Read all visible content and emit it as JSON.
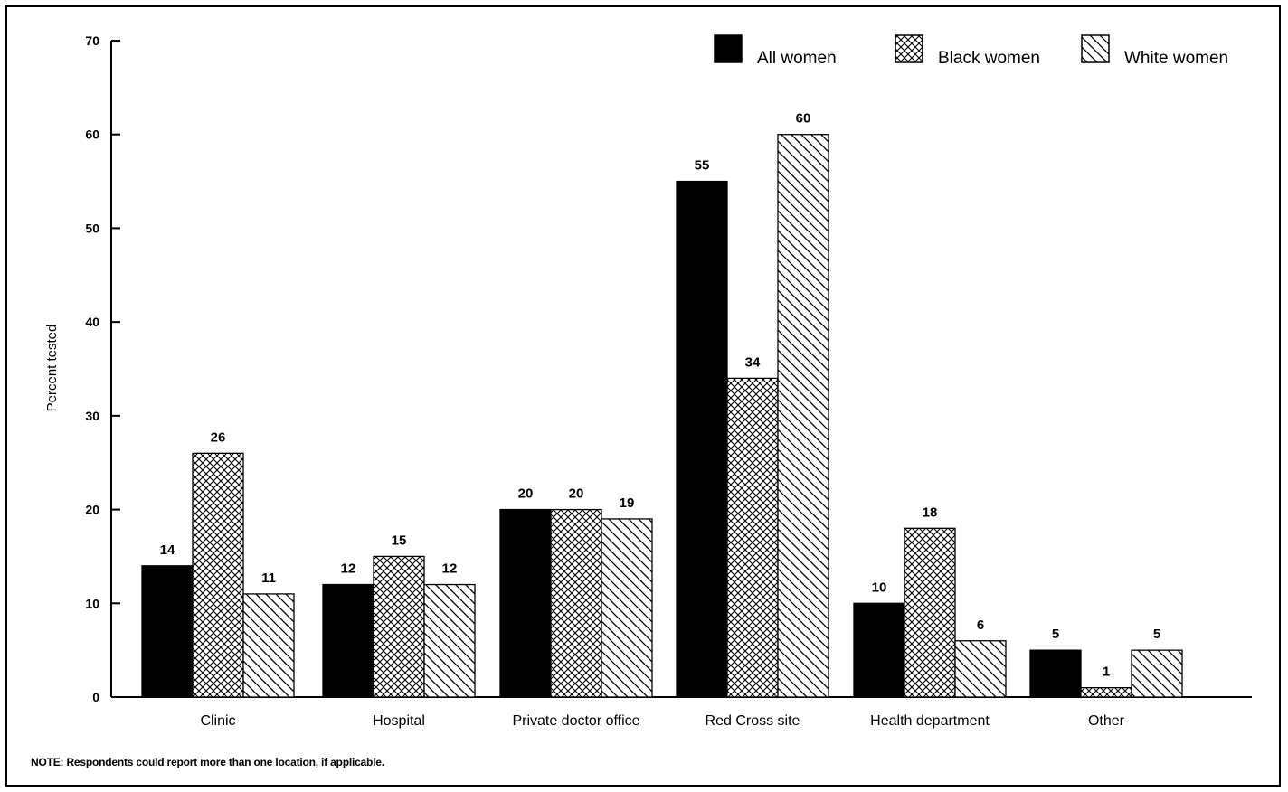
{
  "chart_data": {
    "type": "bar",
    "ylabel": "Percent tested",
    "xlabel": "",
    "ylim": [
      0,
      70
    ],
    "yticks": [
      0,
      10,
      20,
      30,
      40,
      50,
      60,
      70
    ],
    "categories": [
      "Clinic",
      "Hospital",
      "Private doctor office",
      "Red Cross site",
      "Health department",
      "Other"
    ],
    "series": [
      {
        "name": "All women",
        "values": [
          14,
          12,
          20,
          55,
          10,
          5
        ],
        "pattern": "solid"
      },
      {
        "name": "Black women",
        "values": [
          26,
          15,
          20,
          34,
          18,
          1
        ],
        "pattern": "crosshatch"
      },
      {
        "name": "White women",
        "values": [
          11,
          12,
          19,
          60,
          6,
          5
        ],
        "pattern": "diagonal"
      }
    ],
    "legend_position": "top-right",
    "grid": false,
    "data_labels": true
  },
  "note": "NOTE: Respondents could report more than one location, if applicable.",
  "colors": {
    "bar_stroke": "#000000",
    "solid_fill": "#000000",
    "background": "#ffffff"
  }
}
